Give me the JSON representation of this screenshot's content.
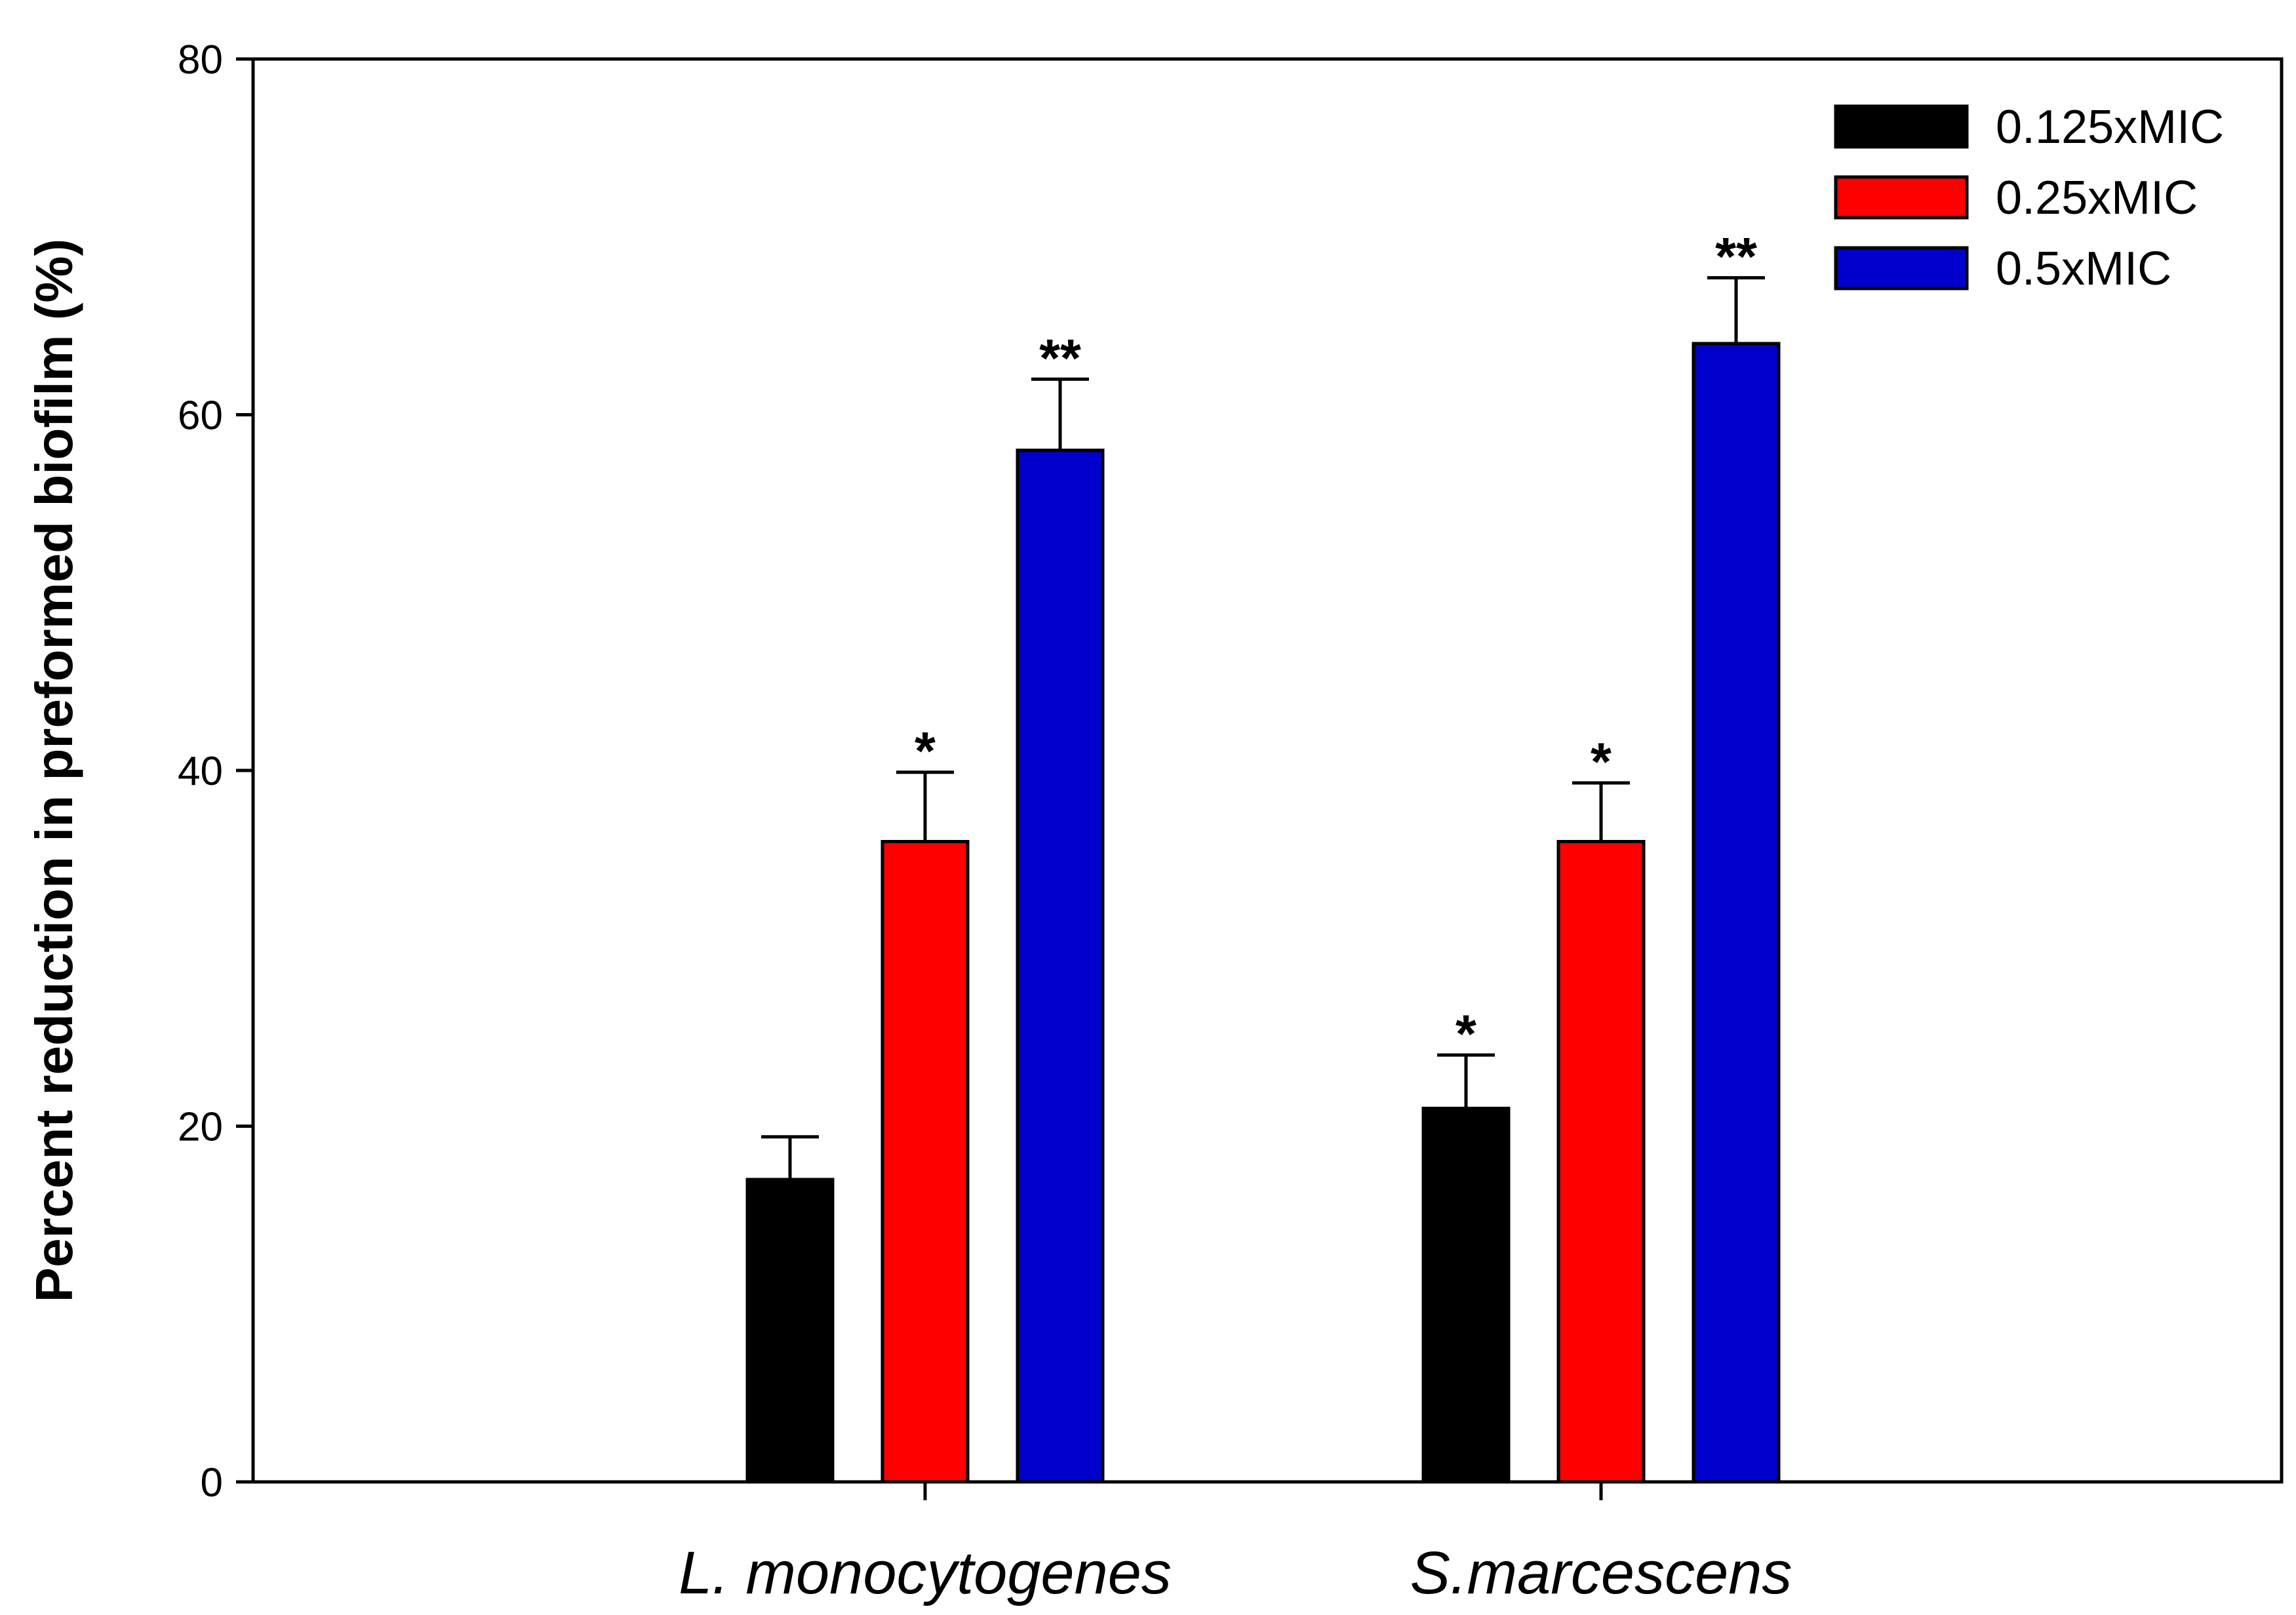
{
  "chart_data": {
    "type": "bar",
    "title": "",
    "xlabel": "",
    "ylabel": "Percent reduction in preformed biofilm (%)",
    "ylim": [
      0,
      80
    ],
    "yticks": [
      0,
      20,
      40,
      60,
      80
    ],
    "grid": false,
    "legend_position": "top-right",
    "categories": [
      "L. monocytogenes",
      "S.marcescens"
    ],
    "series": [
      {
        "name": "0.125xMIC",
        "color": "#000000",
        "values": [
          17,
          21
        ],
        "errors": [
          2.4,
          3.0
        ],
        "significance": [
          "",
          "*"
        ]
      },
      {
        "name": "0.25xMIC",
        "color": "#ff0000",
        "values": [
          36,
          36
        ],
        "errors": [
          3.9,
          3.3
        ],
        "significance": [
          "*",
          "*"
        ]
      },
      {
        "name": "0.5xMIC",
        "color": "#0000cc",
        "values": [
          58,
          64
        ],
        "errors": [
          4.0,
          3.7
        ],
        "significance": [
          "**",
          "**"
        ]
      }
    ]
  }
}
